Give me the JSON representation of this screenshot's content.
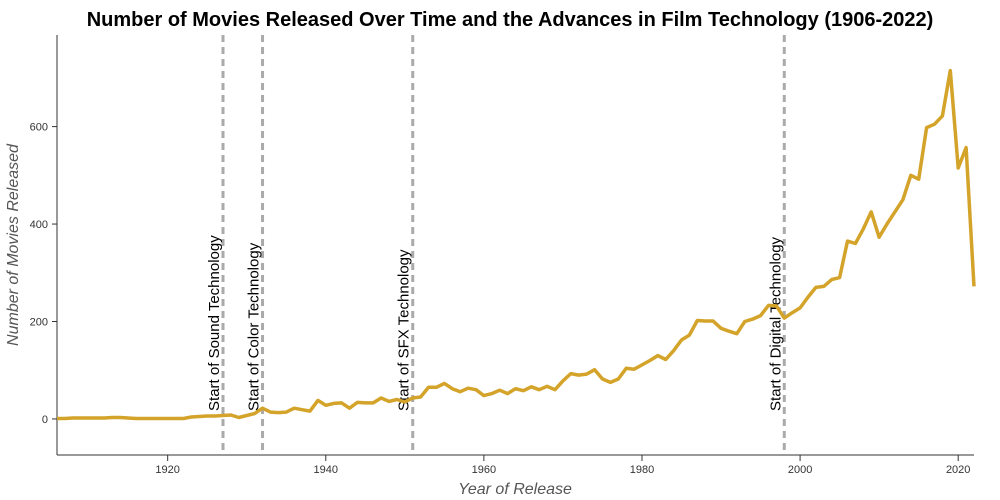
{
  "chart_data": {
    "type": "line",
    "title": "Number of Movies Released Over Time and the Advances in Film Technology (1906-2022)",
    "x_label": "Year of Release",
    "y_label": "Number of Movies Released",
    "x": [
      1906,
      1907,
      1908,
      1909,
      1910,
      1911,
      1912,
      1913,
      1914,
      1915,
      1916,
      1917,
      1918,
      1919,
      1920,
      1921,
      1922,
      1923,
      1924,
      1925,
      1926,
      1927,
      1928,
      1929,
      1930,
      1931,
      1932,
      1933,
      1934,
      1935,
      1936,
      1937,
      1938,
      1939,
      1940,
      1941,
      1942,
      1943,
      1944,
      1945,
      1946,
      1947,
      1948,
      1949,
      1950,
      1951,
      1952,
      1953,
      1954,
      1955,
      1956,
      1957,
      1958,
      1959,
      1960,
      1961,
      1962,
      1963,
      1964,
      1965,
      1966,
      1967,
      1968,
      1969,
      1970,
      1971,
      1972,
      1973,
      1974,
      1975,
      1976,
      1977,
      1978,
      1979,
      1980,
      1981,
      1982,
      1983,
      1984,
      1985,
      1986,
      1987,
      1988,
      1989,
      1990,
      1991,
      1992,
      1993,
      1994,
      1995,
      1996,
      1997,
      1998,
      1999,
      2000,
      2001,
      2002,
      2003,
      2004,
      2005,
      2006,
      2007,
      2008,
      2009,
      2010,
      2011,
      2012,
      2013,
      2014,
      2015,
      2016,
      2017,
      2018,
      2019,
      2020,
      2021,
      2022
    ],
    "series": [
      {
        "name": "Movies",
        "color": "#d4a32a",
        "values": [
          1,
          1,
          2,
          2,
          2,
          2,
          2,
          3,
          3,
          2,
          1,
          1,
          1,
          1,
          1,
          1,
          1,
          4,
          5,
          6,
          6,
          7,
          8,
          3,
          7,
          11,
          22,
          14,
          13,
          14,
          22,
          19,
          16,
          38,
          28,
          32,
          33,
          22,
          34,
          33,
          33,
          43,
          36,
          40,
          35,
          43,
          45,
          65,
          65,
          73,
          62,
          56,
          63,
          60,
          48,
          52,
          59,
          52,
          62,
          58,
          66,
          60,
          67,
          60,
          78,
          93,
          90,
          92,
          101,
          82,
          75,
          82,
          104,
          102,
          111,
          120,
          130,
          122,
          140,
          162,
          172,
          202,
          201,
          201,
          186,
          180,
          175,
          200,
          205,
          212,
          233,
          232,
          207,
          218,
          228,
          250,
          270,
          272,
          286,
          290,
          365,
          360,
          390,
          425,
          373,
          400,
          425,
          450,
          500,
          492,
          598,
          605,
          622,
          715,
          515,
          557,
          272
        ]
      }
    ],
    "annotations": [
      {
        "x": 1927,
        "text": "Start of Sound Technology"
      },
      {
        "x": 1932,
        "text": "Start of Color Technology"
      },
      {
        "x": 1951,
        "text": "Start of SFX Technology"
      },
      {
        "x": 1998,
        "text": "Start of Digital Technology"
      }
    ],
    "xlim": [
      1906,
      2022
    ],
    "xticks": [
      1920,
      1940,
      1960,
      1980,
      2000,
      2020
    ],
    "ylim": [
      -74,
      788
    ],
    "yticks": [
      0,
      200,
      400,
      600
    ],
    "grid": false
  }
}
